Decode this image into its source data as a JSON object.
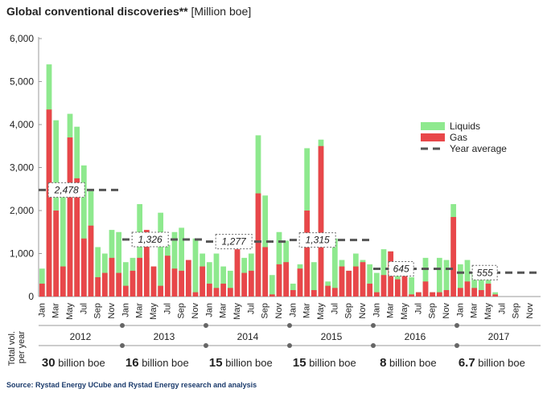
{
  "title_bold": "Global conventional discoveries**",
  "title_unit": " [Million boe]",
  "source": "Source: Rystad Energy UCube and Rystad Energy research and analysis",
  "colors": {
    "liquids": "#8ee98e",
    "gas": "#e8474a",
    "avg": "#555555",
    "grid": "#cccccc",
    "text": "#222222",
    "blue": "#1a3a6b"
  },
  "chart_data": {
    "type": "bar",
    "stacked": true,
    "yticks": [
      "0",
      "1,000",
      "2,000",
      "3,000",
      "4,000",
      "5,000",
      "6,000"
    ],
    "ylim": [
      0,
      6000
    ],
    "grid": true,
    "legend_position": "right-middle",
    "month_labels": [
      "Jan",
      "Mar",
      "May",
      "Jul",
      "Sep",
      "Nov"
    ],
    "years": [
      "2012",
      "2013",
      "2014",
      "2015",
      "2016",
      "2017"
    ],
    "series": [
      {
        "name": "Liquids",
        "values": [
          330,
          1050,
          2100,
          2300,
          400,
          550,
          1450,
          1250,
          250,
          300,
          0,
          550,
          400,
          500,
          400,
          600,
          0,
          200,
          600,
          100,
          1050,
          400,
          1000,
          1250,
          200,
          950,
          0,
          350,
          250,
          200,
          50,
          400,
          0,
          400,
          0,
          50,
          400,
          50,
          350,
          0,
          300,
          1250,
          300,
          300,
          300,
          1500,
          0,
          750,
          0,
          250,
          0,
          400,
          300,
          80,
          0,
          1500,
          0,
          1200,
          850,
          100,
          700,
          0,
          200,
          0,
          200,
          100,
          100,
          100,
          50,
          0,
          500,
          100,
          550,
          50,
          0,
          100,
          50,
          350,
          700,
          200,
          100,
          100,
          0,
          80,
          100,
          50,
          0,
          0,
          50,
          50,
          250,
          600,
          300,
          250,
          50,
          0,
          50,
          0,
          50,
          350,
          100,
          50,
          0,
          200,
          0,
          150,
          50,
          0,
          650,
          200,
          600,
          100,
          0,
          400,
          50,
          250,
          0,
          300,
          150,
          500,
          350,
          650,
          800,
          50,
          150,
          850,
          100,
          400,
          300,
          200,
          150,
          300,
          150,
          300,
          350,
          400,
          150,
          0,
          50,
          0,
          0,
          0,
          50,
          50,
          150,
          0,
          0,
          100,
          100,
          50,
          0,
          200,
          0,
          0,
          300,
          0,
          100,
          0,
          0,
          50,
          50,
          50,
          50,
          50,
          0,
          100,
          0,
          0,
          0,
          50,
          0,
          0,
          100,
          0,
          0,
          0,
          100,
          0,
          0,
          0,
          0,
          0,
          0,
          0,
          0,
          0,
          0,
          0,
          0,
          0,
          0,
          0,
          0,
          0,
          0,
          0,
          0,
          0,
          0,
          0,
          0,
          0,
          0,
          0,
          0,
          0,
          0,
          0,
          0,
          0,
          0,
          0,
          0,
          0,
          0,
          0
        ]
      },
      {
        "name": "Gas",
        "values": []
      }
    ],
    "stack_totals": [
      650,
      5400,
      4100,
      2500,
      4250,
      3950,
      3050,
      2450,
      1150,
      1000,
      1550,
      1500,
      800,
      900,
      2150,
      900,
      700,
      1950,
      1200,
      1500,
      1600,
      250,
      1350,
      1000,
      800,
      1000,
      700,
      600,
      1050,
      900,
      1000,
      3750,
      2350,
      500,
      1500,
      1300,
      300,
      750,
      3450,
      800,
      3650,
      350,
      1350,
      850,
      600,
      1000,
      850,
      750,
      550,
      1100,
      1050,
      550,
      650,
      450,
      100,
      900,
      100,
      900,
      850,
      2150,
      750,
      850,
      550,
      700,
      450,
      100
    ],
    "gas_values": [
      300,
      4350,
      2000,
      700,
      3700,
      2750,
      1350,
      1650,
      450,
      550,
      900,
      550,
      250,
      600,
      900,
      1550,
      700,
      250,
      950,
      650,
      600,
      850,
      100,
      700,
      300,
      200,
      300,
      200,
      1100,
      550,
      600,
      2400,
      1150,
      50,
      750,
      800,
      150,
      650,
      2000,
      150,
      3500,
      250,
      200,
      700,
      600,
      700,
      800,
      300,
      100,
      500,
      1050,
      400,
      550,
      50,
      100,
      350,
      100,
      100,
      150,
      1850,
      200,
      350,
      200,
      150,
      300,
      50
    ],
    "year_averages": [
      {
        "year": "2012",
        "value": 2478,
        "label": "2,478"
      },
      {
        "year": "2013",
        "value": 1326,
        "label": "1,326"
      },
      {
        "year": "2014",
        "value": 1277,
        "label": "1,277"
      },
      {
        "year": "2015",
        "value": 1315,
        "label": "1,315"
      },
      {
        "year": "2016",
        "value": 645,
        "label": "645"
      },
      {
        "year": "2017",
        "value": 555,
        "label": "555"
      }
    ],
    "legend": [
      "Liquids",
      "Gas",
      "Year average"
    ],
    "volume_axis_label": "Total vol. per year",
    "volumes": [
      {
        "num": "30",
        "unit": " billion boe"
      },
      {
        "num": "16",
        "unit": " billion boe"
      },
      {
        "num": "15",
        "unit": " billion boe"
      },
      {
        "num": "15",
        "unit": " billion boe"
      },
      {
        "num": "8",
        "unit": " billion boe"
      },
      {
        "num": "6.7",
        "unit": " billion boe"
      }
    ]
  }
}
